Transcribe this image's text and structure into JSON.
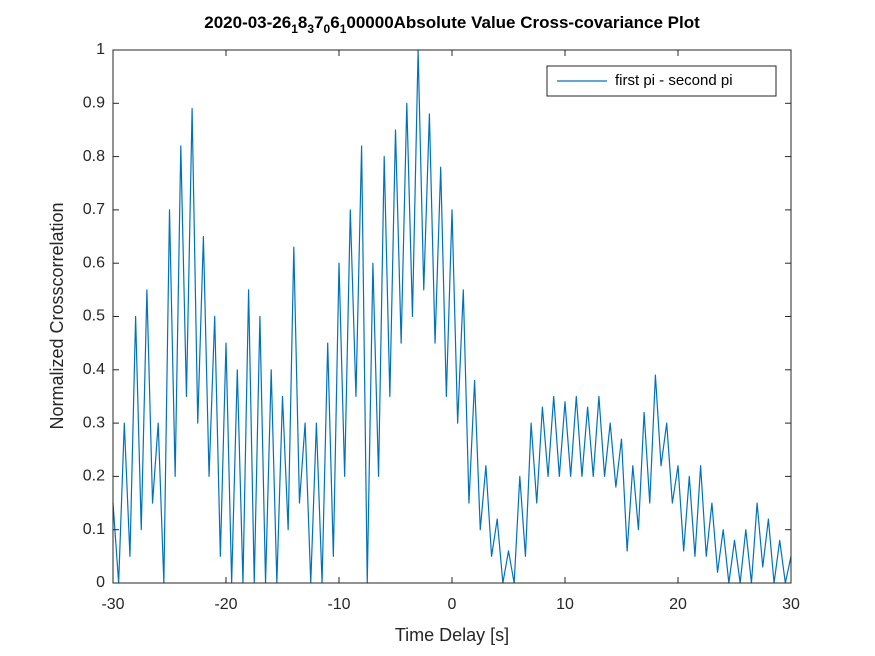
{
  "chart_data": {
    "type": "line",
    "title_segments": [
      "2020-03-26",
      "1",
      "8",
      "3",
      "7",
      "0",
      "6",
      "1",
      "00000Absolute Value Cross-covariance Plot"
    ],
    "x_label": "Time Delay [s]",
    "y_label": "Normalized Crosscorrelation",
    "xlim": [
      -30,
      30
    ],
    "xticks": [
      -30,
      -20,
      -10,
      0,
      10,
      20,
      30
    ],
    "ylim": [
      0,
      1
    ],
    "yticks": [
      0,
      0.1,
      0.2,
      0.3,
      0.4,
      0.5,
      0.6,
      0.7,
      0.8,
      0.9,
      1
    ],
    "legend": "top-right",
    "grid": false,
    "x": [
      -30,
      -29.5,
      -29,
      -28.5,
      -28,
      -27.5,
      -27,
      -26.5,
      -26,
      -25.5,
      -25,
      -24.5,
      -24,
      -23.5,
      -23,
      -22.5,
      -22,
      -21.5,
      -21,
      -20.5,
      -20,
      -19.5,
      -19,
      -18.5,
      -18,
      -17.5,
      -17,
      -16.5,
      -16,
      -15.5,
      -15,
      -14.5,
      -14,
      -13.5,
      -13,
      -12.5,
      -12,
      -11.5,
      -11,
      -10.5,
      -10,
      -9.5,
      -9,
      -8.5,
      -8,
      -7.5,
      -7,
      -6.5,
      -6,
      -5.5,
      -5,
      -4.5,
      -4,
      -3.5,
      -3,
      -2.5,
      -2,
      -1.5,
      -1,
      -0.5,
      0,
      0.5,
      1,
      1.5,
      2,
      2.5,
      3,
      3.5,
      4,
      4.5,
      5,
      5.5,
      6,
      6.5,
      7,
      7.5,
      8,
      8.5,
      9,
      9.5,
      10,
      10.5,
      11,
      11.5,
      12,
      12.5,
      13,
      13.5,
      14,
      14.5,
      15,
      15.5,
      16,
      16.5,
      17,
      17.5,
      18,
      18.5,
      19,
      19.5,
      20,
      20.5,
      21,
      21.5,
      22,
      22.5,
      23,
      23.5,
      24,
      24.5,
      25,
      25.5,
      26,
      26.5,
      27,
      27.5,
      28,
      28.5,
      29,
      29.5,
      30
    ],
    "series": [
      {
        "name": "first pi - second pi",
        "color": "#0072bd",
        "values": [
          0.15,
          0,
          0.3,
          0.05,
          0.5,
          0.1,
          0.55,
          0.15,
          0.3,
          0,
          0.7,
          0.2,
          0.82,
          0.35,
          0.89,
          0.3,
          0.65,
          0.2,
          0.5,
          0.05,
          0.45,
          0,
          0.4,
          0,
          0.55,
          0,
          0.5,
          0,
          0.4,
          0,
          0.35,
          0.1,
          0.63,
          0.15,
          0.3,
          0,
          0.3,
          0,
          0.45,
          0.05,
          0.6,
          0.2,
          0.7,
          0.35,
          0.82,
          0,
          0.6,
          0.2,
          0.8,
          0.35,
          0.85,
          0.45,
          0.9,
          0.5,
          1,
          0.55,
          0.88,
          0.45,
          0.78,
          0.35,
          0.7,
          0.3,
          0.55,
          0.15,
          0.38,
          0.1,
          0.22,
          0.05,
          0.12,
          0,
          0.06,
          0,
          0.2,
          0.05,
          0.3,
          0.15,
          0.33,
          0.2,
          0.35,
          0.2,
          0.34,
          0.2,
          0.35,
          0.2,
          0.33,
          0.2,
          0.35,
          0.2,
          0.3,
          0.18,
          0.27,
          0.06,
          0.22,
          0.1,
          0.32,
          0.15,
          0.39,
          0.22,
          0.3,
          0.15,
          0.22,
          0.06,
          0.2,
          0.05,
          0.22,
          0.05,
          0.15,
          0.02,
          0.1,
          0,
          0.08,
          0,
          0.1,
          0,
          0.15,
          0.03,
          0.12,
          0,
          0.08,
          0,
          0.05
        ]
      }
    ]
  }
}
